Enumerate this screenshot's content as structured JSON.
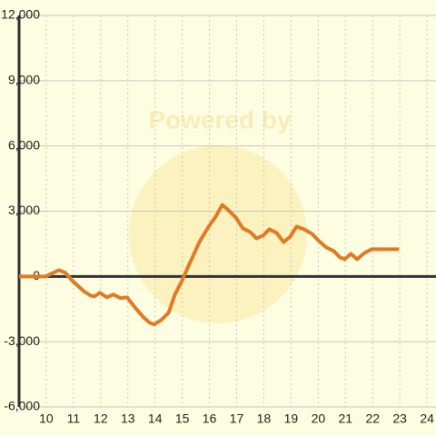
{
  "chart_data": {
    "type": "line",
    "watermark": "Powered by",
    "x": [
      9,
      9.97,
      10.47,
      10.7,
      10.97,
      11.37,
      11.63,
      11.77,
      11.97,
      12.23,
      12.47,
      12.73,
      12.97,
      13.23,
      13.57,
      13.8,
      13.97,
      14.23,
      14.5,
      14.73,
      14.97,
      15.3,
      15.63,
      15.97,
      16.23,
      16.47,
      16.63,
      16.97,
      17.23,
      17.5,
      17.73,
      17.97,
      18.2,
      18.47,
      18.73,
      18.97,
      19.2,
      19.47,
      19.77,
      20.03,
      20.3,
      20.57,
      20.8,
      20.97,
      21.2,
      21.43,
      21.7,
      21.97,
      22.97
    ],
    "series": [
      {
        "color": "#e07b24",
        "values": [
          0,
          0,
          290,
          170,
          -210,
          -670,
          -880,
          -920,
          -750,
          -960,
          -830,
          -1000,
          -960,
          -1375,
          -1875,
          -2125,
          -2210,
          -2000,
          -1670,
          -830,
          -250,
          670,
          1580,
          2290,
          2750,
          3290,
          3125,
          2710,
          2210,
          2040,
          1750,
          1875,
          2170,
          2000,
          1580,
          1830,
          2290,
          2170,
          1960,
          1625,
          1330,
          1170,
          875,
          790,
          1040,
          790,
          1080,
          1250,
          1250
        ]
      }
    ],
    "xlim": [
      9,
      24.33
    ],
    "ylim": [
      -6000,
      12000
    ],
    "xticks": [
      10,
      11,
      12,
      13,
      14,
      15,
      16,
      17,
      18,
      19,
      20,
      21,
      22,
      23,
      24
    ],
    "yticks": [
      {
        "value": -6000,
        "label": "-6,000"
      },
      {
        "value": -3000,
        "label": "-3,000"
      },
      0,
      {
        "value": 3000,
        "label": "3,000"
      },
      {
        "value": 6000,
        "label": "6,000"
      },
      {
        "value": 9000,
        "label": "9,000"
      },
      {
        "value": 12000,
        "label": "12,000"
      }
    ],
    "grid": true
  }
}
